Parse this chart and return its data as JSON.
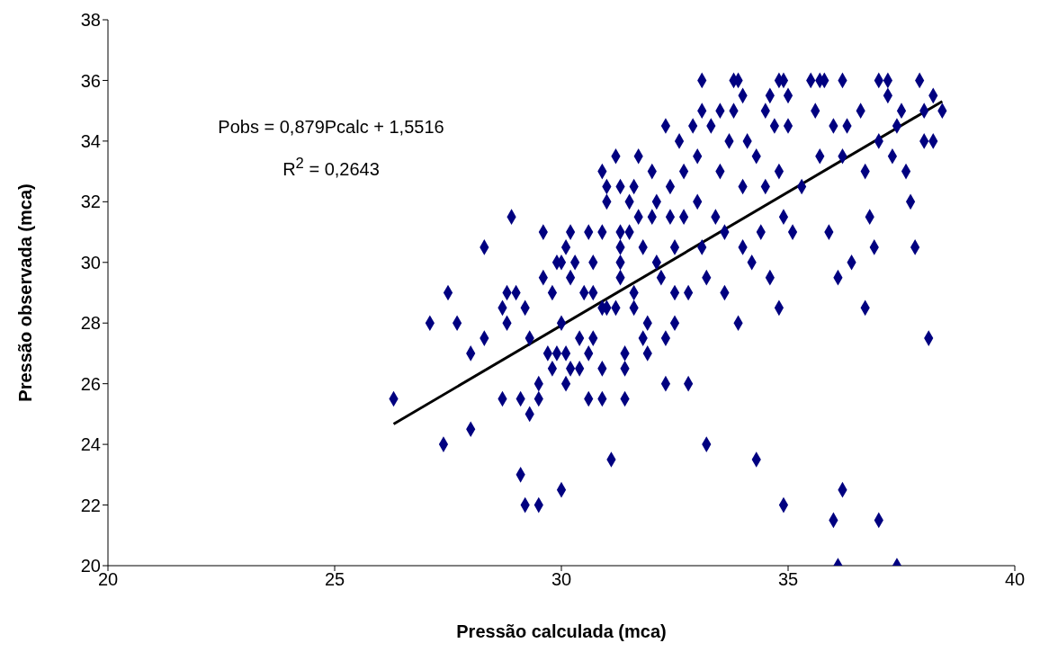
{
  "chart_data": {
    "type": "scatter",
    "xlabel": "Pressão calculada (mca)",
    "ylabel": "Pressão observada (mca)",
    "xlim": [
      20,
      40
    ],
    "xticks": [
      20,
      25,
      30,
      35,
      40
    ],
    "ylim": [
      20,
      38
    ],
    "yticks": [
      20,
      22,
      24,
      26,
      28,
      30,
      32,
      34,
      36,
      38
    ],
    "grid": false,
    "legend": false,
    "annotations": [
      "Pobs = 0,879Pcalc + 1,5516",
      "R$^{2}$ = 0,2643"
    ],
    "series": [
      {
        "color": "#000080",
        "marker": "diamond",
        "x": [
          26.3,
          27.1,
          27.4,
          27.5,
          27.7,
          28.0,
          28.0,
          28.3,
          28.3,
          28.7,
          28.7,
          28.8,
          28.8,
          28.9,
          29.0,
          29.1,
          29.1,
          29.2,
          29.2,
          29.3,
          29.3,
          29.5,
          29.5,
          29.5,
          29.6,
          29.6,
          29.7,
          29.8,
          29.8,
          29.9,
          29.9,
          30.0,
          30.0,
          30.1,
          30.1,
          30.1,
          30.0,
          30.2,
          30.2,
          30.2,
          30.3,
          30.4,
          30.4,
          30.5,
          30.6,
          30.6,
          30.6,
          30.7,
          30.7,
          30.7,
          30.9,
          30.9,
          30.9,
          30.9,
          31.0,
          30.9,
          31.0,
          31.0,
          31.1,
          31.2,
          31.2,
          31.3,
          31.3,
          31.3,
          31.3,
          31.3,
          31.4,
          31.4,
          31.4,
          31.5,
          31.5,
          31.6,
          31.6,
          31.6,
          31.7,
          31.7,
          31.8,
          31.8,
          31.9,
          31.9,
          32.0,
          32.0,
          32.1,
          32.1,
          32.2,
          32.3,
          32.3,
          32.3,
          32.4,
          32.4,
          32.5,
          32.5,
          32.5,
          32.6,
          32.7,
          32.7,
          32.8,
          32.8,
          32.9,
          33.0,
          33.0,
          33.1,
          33.1,
          33.1,
          33.2,
          33.2,
          33.3,
          33.4,
          33.5,
          33.5,
          33.6,
          33.6,
          33.7,
          33.8,
          33.9,
          33.9,
          34.0,
          34.0,
          34.0,
          34.1,
          34.2,
          34.3,
          34.3,
          34.4,
          34.5,
          34.5,
          34.6,
          34.6,
          34.7,
          34.8,
          34.8,
          34.8,
          34.9,
          34.9,
          35.0,
          35.0,
          35.1,
          35.3,
          35.5,
          35.6,
          35.7,
          35.8,
          35.9,
          36.0,
          36.0,
          36.1,
          36.1,
          36.2,
          36.2,
          36.3,
          36.4,
          36.6,
          36.7,
          36.7,
          36.8,
          36.9,
          37.0,
          37.0,
          37.0,
          37.2,
          37.3,
          37.4,
          37.4,
          37.5,
          37.6,
          37.7,
          37.8,
          37.9,
          38.0,
          38.0,
          38.2,
          38.2,
          38.1,
          38.4,
          33.8,
          35.7,
          36.2,
          37.2,
          34.9
        ],
        "values": [
          25.5,
          28,
          24,
          29,
          28,
          27,
          24.5,
          27.5,
          30.5,
          25.5,
          28.5,
          29,
          28,
          31.5,
          29,
          23,
          25.5,
          28.5,
          22,
          25,
          27.5,
          22,
          25.5,
          26,
          29.5,
          31,
          27,
          26.5,
          29,
          27,
          30,
          28,
          30,
          30.5,
          26,
          27,
          22.5,
          29.5,
          26.5,
          31,
          30,
          27.5,
          26.5,
          29,
          27,
          31,
          25.5,
          27.5,
          30,
          29,
          31,
          28.5,
          26.5,
          25.5,
          28.5,
          33,
          32.5,
          32,
          23.5,
          28.5,
          33.5,
          32.5,
          31,
          30.5,
          30,
          29.5,
          25.5,
          26.5,
          27,
          32,
          31,
          29,
          28.5,
          32.5,
          33.5,
          31.5,
          30.5,
          27.5,
          28,
          27,
          33,
          31.5,
          32,
          30,
          29.5,
          27.5,
          26,
          34.5,
          31.5,
          32.5,
          30.5,
          28,
          29,
          34,
          31.5,
          33,
          26,
          29,
          34.5,
          33.5,
          32,
          35,
          36,
          30.5,
          29.5,
          24,
          34.5,
          31.5,
          35,
          33,
          31,
          29,
          34,
          35,
          36,
          28,
          32.5,
          35.5,
          30.5,
          34,
          30,
          33.5,
          23.5,
          31,
          35,
          32.5,
          35.5,
          29.5,
          34.5,
          33,
          36,
          28.5,
          22,
          31.5,
          35.5,
          34.5,
          31,
          32.5,
          36,
          35,
          33.5,
          36,
          31,
          21.5,
          34.5,
          29.5,
          20,
          22.5,
          33.5,
          34.5,
          30,
          35,
          33,
          28.5,
          31.5,
          30.5,
          36,
          34,
          21.5,
          35.5,
          33.5,
          34.5,
          20,
          35,
          33,
          32,
          30.5,
          36,
          34,
          35,
          35.5,
          34,
          27.5,
          35,
          36,
          36,
          36,
          36,
          36
        ]
      },
      {
        "type": "line",
        "color": "#000000",
        "x": [
          26.3,
          38.4
        ],
        "values": [
          24.67,
          35.31
        ]
      }
    ]
  }
}
